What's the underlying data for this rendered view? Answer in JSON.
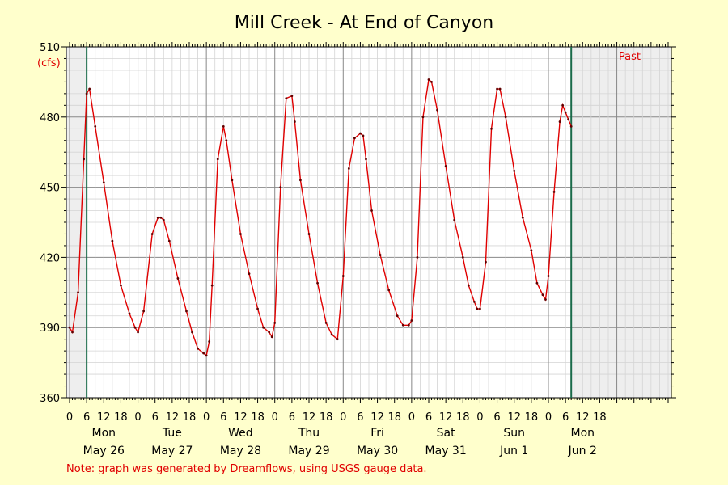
{
  "chart_data": {
    "type": "line",
    "title": "Mill Creek - At End of Canyon",
    "ylabel": "(cfs)",
    "ylim": [
      360,
      510
    ],
    "yticks": [
      360,
      390,
      420,
      450,
      480,
      510
    ],
    "hour_tick_labels": [
      "0",
      "6",
      "12",
      "18"
    ],
    "days": [
      {
        "weekday": "Mon",
        "date": "May 26"
      },
      {
        "weekday": "Tue",
        "date": "May 27"
      },
      {
        "weekday": "Wed",
        "date": "May 28"
      },
      {
        "weekday": "Thu",
        "date": "May 29"
      },
      {
        "weekday": "Fri",
        "date": "May 30"
      },
      {
        "weekday": "Sat",
        "date": "May 31"
      },
      {
        "weekday": "Sun",
        "date": "Jun 1"
      },
      {
        "weekday": "Mon",
        "date": "Jun 2"
      }
    ],
    "past_label": "Past",
    "note": "Note: graph was generated by Dreamflows, using USGS gauge data.",
    "grid": true,
    "line_color": "#e00000",
    "series": [
      {
        "x": [
          "May 26 00:00",
          "May 26 01:00",
          "May 26 03:00",
          "May 26 05:00",
          "May 26 06:00",
          "May 26 07:00",
          "May 26 09:00",
          "May 26 12:00",
          "May 26 15:00",
          "May 26 18:00",
          "May 26 21:00",
          "May 26 23:00",
          "May 27 00:00",
          "May 27 02:00",
          "May 27 05:00",
          "May 27 07:00",
          "May 27 08:00",
          "May 27 09:00",
          "May 27 11:00",
          "May 27 14:00",
          "May 27 17:00",
          "May 27 19:00",
          "May 27 21:00",
          "May 27 23:00",
          "May 28 00:00",
          "May 28 01:00",
          "May 28 02:00",
          "May 28 04:00",
          "May 28 06:00",
          "May 28 07:00",
          "May 28 09:00",
          "May 28 12:00",
          "May 28 15:00",
          "May 28 18:00",
          "May 28 20:00",
          "May 28 22:00",
          "May 28 23:00",
          "May 29 00:00",
          "May 29 02:00",
          "May 29 04:00",
          "May 29 06:00",
          "May 29 07:00",
          "May 29 09:00",
          "May 29 12:00",
          "May 29 15:00",
          "May 29 18:00",
          "May 29 20:00",
          "May 29 22:00",
          "May 30 00:00",
          "May 30 02:00",
          "May 30 04:00",
          "May 30 06:00",
          "May 30 07:00",
          "May 30 08:00",
          "May 30 10:00",
          "May 30 13:00",
          "May 30 16:00",
          "May 30 19:00",
          "May 30 21:00",
          "May 30 23:00",
          "May 31 00:00",
          "May 31 02:00",
          "May 31 04:00",
          "May 31 06:00",
          "May 31 07:00",
          "May 31 09:00",
          "May 31 12:00",
          "May 31 15:00",
          "May 31 18:00",
          "May 31 20:00",
          "May 31 22:00",
          "May 31 23:00",
          "Jun 1 00:00",
          "Jun 1 02:00",
          "Jun 1 04:00",
          "Jun 1 06:00",
          "Jun 1 07:00",
          "Jun 1 09:00",
          "Jun 1 12:00",
          "Jun 1 15:00",
          "Jun 1 18:00",
          "Jun 1 20:00",
          "Jun 1 22:00",
          "Jun 1 23:00",
          "Jun 2 00:00",
          "Jun 2 02:00",
          "Jun 2 04:00",
          "Jun 2 05:00",
          "Jun 2 06:00",
          "Jun 2 07:00",
          "Jun 2 08:00"
        ],
        "y": [
          390,
          388,
          405,
          462,
          490,
          492,
          476,
          452,
          427,
          408,
          396,
          390,
          388,
          397,
          430,
          437,
          437,
          436,
          427,
          411,
          397,
          388,
          381,
          379,
          378,
          384,
          408,
          462,
          476,
          470,
          453,
          430,
          413,
          398,
          390,
          388,
          386,
          392,
          450,
          488,
          489,
          478,
          453,
          430,
          409,
          392,
          387,
          385,
          412,
          458,
          471,
          473,
          472,
          462,
          440,
          421,
          406,
          395,
          391,
          391,
          393,
          420,
          480,
          496,
          495,
          483,
          459,
          436,
          420,
          408,
          401,
          398,
          398,
          418,
          475,
          492,
          492,
          480,
          457,
          437,
          423,
          409,
          404,
          402,
          412,
          448,
          478,
          485,
          482,
          479,
          476
        ]
      }
    ]
  }
}
